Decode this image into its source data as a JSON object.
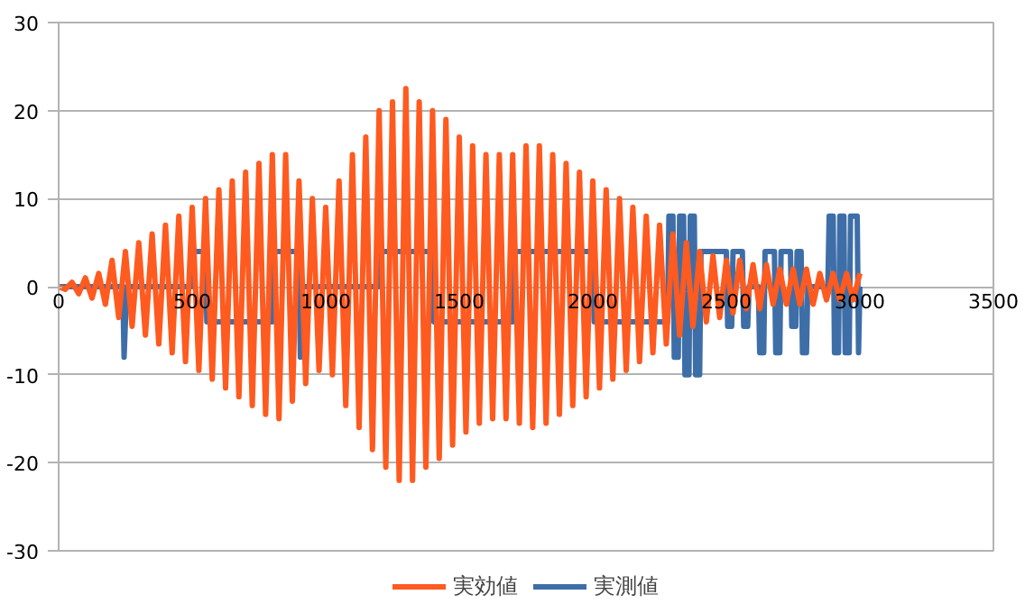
{
  "chart_data": {
    "type": "line",
    "xlim": [
      0,
      3500
    ],
    "ylim": [
      -30,
      30
    ],
    "xticks": [
      0,
      500,
      1000,
      1500,
      2000,
      2500,
      3000,
      3500
    ],
    "yticks": [
      -30,
      -20,
      -10,
      0,
      10,
      20,
      30
    ],
    "grid": "y",
    "legend": "bottom",
    "series": [
      {
        "name": "実効値",
        "color": "#ff5a1f",
        "x": [
          0,
          25,
          50,
          75,
          100,
          125,
          150,
          175,
          200,
          225,
          250,
          275,
          300,
          325,
          350,
          375,
          400,
          425,
          450,
          475,
          500,
          525,
          550,
          575,
          600,
          625,
          650,
          675,
          700,
          725,
          750,
          775,
          800,
          825,
          850,
          875,
          900,
          925,
          950,
          975,
          1000,
          1025,
          1050,
          1075,
          1100,
          1125,
          1150,
          1175,
          1200,
          1225,
          1250,
          1275,
          1300,
          1325,
          1350,
          1375,
          1400,
          1425,
          1450,
          1475,
          1500,
          1525,
          1550,
          1575,
          1600,
          1625,
          1650,
          1675,
          1700,
          1725,
          1750,
          1775,
          1800,
          1825,
          1850,
          1875,
          1900,
          1925,
          1950,
          1975,
          2000,
          2025,
          2050,
          2075,
          2100,
          2125,
          2150,
          2175,
          2200,
          2225,
          2250,
          2275,
          2300,
          2325,
          2350,
          2375,
          2400,
          2425,
          2450,
          2475,
          2500,
          2525,
          2550,
          2575,
          2600,
          2625,
          2650,
          2675,
          2700,
          2725,
          2750,
          2775,
          2800,
          2825,
          2850,
          2875,
          2900,
          2925,
          2950,
          2975,
          3000
        ],
        "values": [
          0,
          -0.3,
          0.5,
          -0.8,
          1,
          -1.3,
          1.5,
          -2,
          3,
          -3.5,
          4,
          -4.5,
          5,
          -5.5,
          6,
          -6.5,
          7,
          -7.5,
          8,
          -8.5,
          9,
          -9.5,
          10,
          -10.5,
          11,
          -11.5,
          12,
          -12.5,
          13,
          -13.5,
          14,
          -14.5,
          15,
          -15,
          15,
          -13,
          12,
          -11,
          10,
          -9.5,
          9,
          -10,
          12,
          -13.5,
          15,
          -16,
          17,
          -18.5,
          20,
          -20.5,
          21,
          -22,
          22.5,
          -22,
          21,
          -20.5,
          20,
          -19.5,
          19,
          -18,
          17,
          -16.5,
          16,
          -15.5,
          15,
          -15,
          15,
          -15,
          15,
          -15.5,
          16,
          -16,
          16,
          -15.5,
          15,
          -14.5,
          14,
          -13.5,
          13,
          -12.5,
          12,
          -11.5,
          11,
          -10.5,
          10,
          -9.5,
          9,
          -8.5,
          8,
          -7.5,
          7,
          -6.5,
          6,
          -5.5,
          5,
          -4.5,
          4,
          -4,
          3.5,
          -3.5,
          3,
          -3,
          3,
          -2.5,
          2.5,
          -2.5,
          2.5,
          -2,
          2,
          -2,
          2,
          -2,
          2,
          -2,
          1.5,
          -1.5,
          1.5,
          -1.5,
          1.5,
          -1.5,
          1.5
        ]
      },
      {
        "name": "実測値",
        "color": "#3e6ea8",
        "x": [
          0,
          240,
          245,
          255,
          500,
          505,
          550,
          555,
          800,
          805,
          900,
          905,
          910,
          1200,
          1205,
          1400,
          1405,
          1700,
          1705,
          2000,
          2005,
          2280,
          2285,
          2300,
          2305,
          2320,
          2325,
          2340,
          2345,
          2360,
          2365,
          2380,
          2385,
          2400,
          2405,
          2500,
          2505,
          2520,
          2525,
          2560,
          2565,
          2580,
          2585,
          2620,
          2625,
          2640,
          2645,
          2680,
          2685,
          2700,
          2705,
          2740,
          2745,
          2760,
          2765,
          2780,
          2785,
          2800,
          2805,
          2880,
          2885,
          2900,
          2905,
          2920,
          2925,
          2940,
          2945,
          2960,
          2965,
          2990,
          2995,
          3000
        ],
        "values": [
          0,
          0,
          -8,
          0,
          0,
          4,
          4,
          -4,
          -4,
          4,
          4,
          -8,
          0,
          0,
          4,
          4,
          -4,
          -4,
          4,
          4,
          -4,
          -4,
          8,
          8,
          -8,
          -8,
          8,
          8,
          -10,
          -10,
          8,
          8,
          -10,
          -10,
          4,
          4,
          -4.5,
          -4.5,
          4,
          4,
          -4.5,
          -4.5,
          0,
          0,
          -7.5,
          -7.5,
          4,
          4,
          -7.5,
          -7.5,
          4,
          4,
          -4.5,
          -4.5,
          4,
          4,
          -7.5,
          -7.5,
          0,
          0,
          8,
          8,
          -7.5,
          -7.5,
          8,
          8,
          -7.5,
          -7.5,
          8,
          8,
          -7.5,
          0
        ]
      }
    ]
  }
}
